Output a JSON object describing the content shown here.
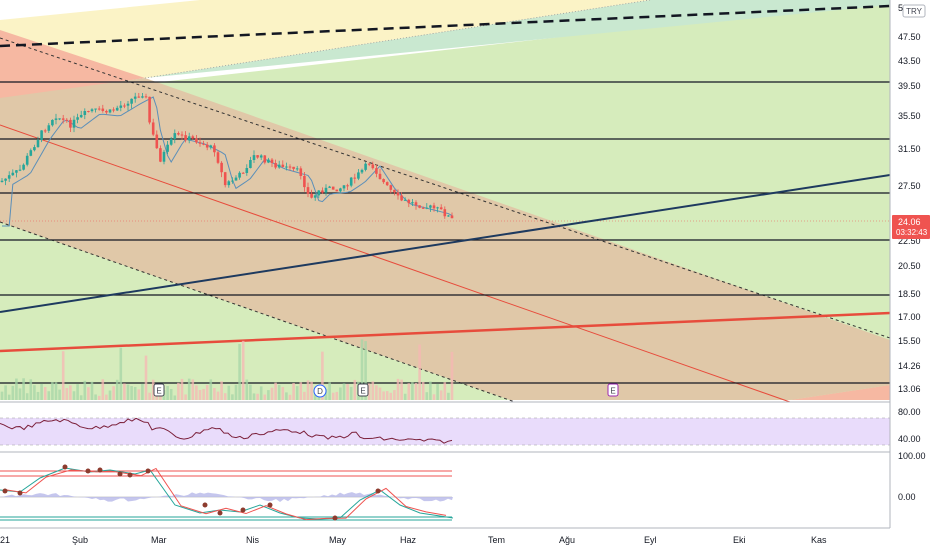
{
  "currency_label": "TRY",
  "price_axis": {
    "ticks": [
      "47.50",
      "43.50",
      "39.50",
      "35.50",
      "31.50",
      "27.50",
      "22.50",
      "20.50",
      "18.50",
      "17.00",
      "15.50",
      "14.26",
      "13.06"
    ],
    "top_partial": "52"
  },
  "last_price": {
    "value": "24.06",
    "countdown": "03:32:43",
    "color": "#ef5350"
  },
  "rsi_axis": {
    "ticks": [
      "80.00",
      "40.00"
    ]
  },
  "stoch_axis": {
    "ticks": [
      "100.00",
      "0.00"
    ]
  },
  "time_axis": {
    "labels": [
      "21",
      "Şub",
      "Mar",
      "Nis",
      "May",
      "Haz",
      "Tem",
      "Ağu",
      "Eyl",
      "Eki",
      "Kas"
    ]
  },
  "event_markers": [
    {
      "label": "E",
      "color": "#434651"
    },
    {
      "label": "D",
      "color": "#2962ff"
    },
    {
      "label": "E",
      "color": "#434651"
    },
    {
      "label": "E",
      "color": "#9c27b0"
    }
  ],
  "colors": {
    "up": "#26a69a",
    "down": "#ef5350",
    "trendline_blue": "#1e3a5f",
    "trendline_red": "#e74c3c",
    "ma_line": "#5b8fb9",
    "rsi_band": "#e9d8fc",
    "rsi_line": "#7b1f3a",
    "fib_green": "#cfe7b4",
    "fib_red": "#f4a98f",
    "fib_yellow": "#fbf3c0",
    "channel_brown": "#e0c6a8"
  }
}
